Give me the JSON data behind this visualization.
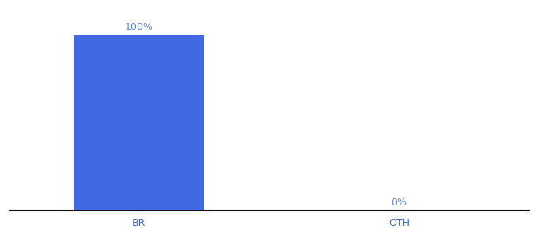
{
  "categories": [
    "BR",
    "OTH"
  ],
  "values": [
    100,
    0
  ],
  "bar_color": "#4169E1",
  "label_color": "#6688cc",
  "label_fontsize": 9,
  "tick_label_color": "#4466bb",
  "tick_fontsize": 9,
  "bar_width": 0.5,
  "ylim": [
    0,
    115
  ],
  "xlim": [
    -0.5,
    1.5
  ],
  "background_color": "#ffffff",
  "annotations": [
    "100%",
    "0%"
  ],
  "x_positions": [
    0,
    1
  ]
}
